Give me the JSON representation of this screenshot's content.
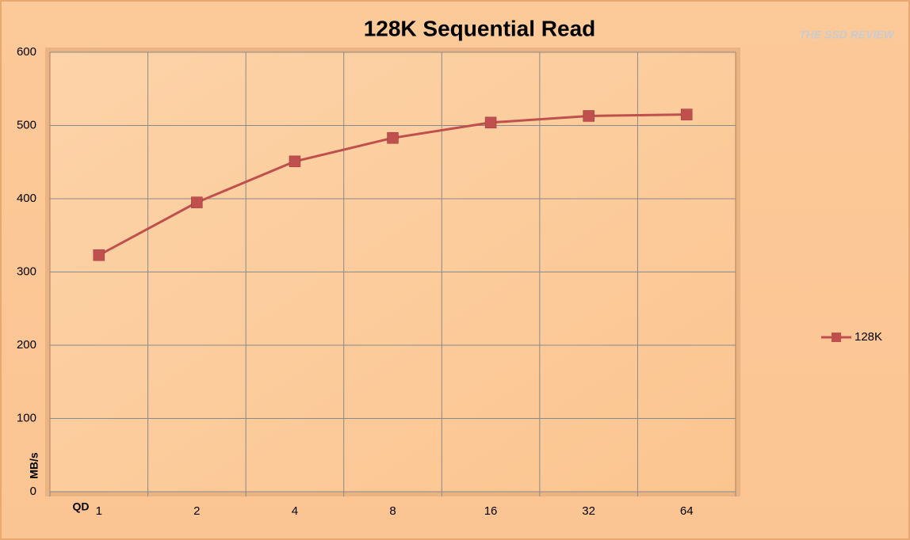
{
  "chart_data": {
    "type": "line",
    "title": "128K Sequential Read",
    "logo": "THE SSD REVIEW",
    "x_label": "QD",
    "y_label": "MB/s",
    "categories": [
      "1",
      "2",
      "4",
      "8",
      "16",
      "32",
      "64"
    ],
    "series": [
      {
        "name": "128K",
        "color": "#c0504d",
        "values": [
          323,
          395,
          451,
          483,
          504,
          513,
          515
        ]
      }
    ],
    "ylim": [
      0,
      600
    ],
    "yticks": [
      0,
      100,
      200,
      300,
      400,
      500,
      600
    ],
    "grid": true,
    "legend": "right"
  }
}
